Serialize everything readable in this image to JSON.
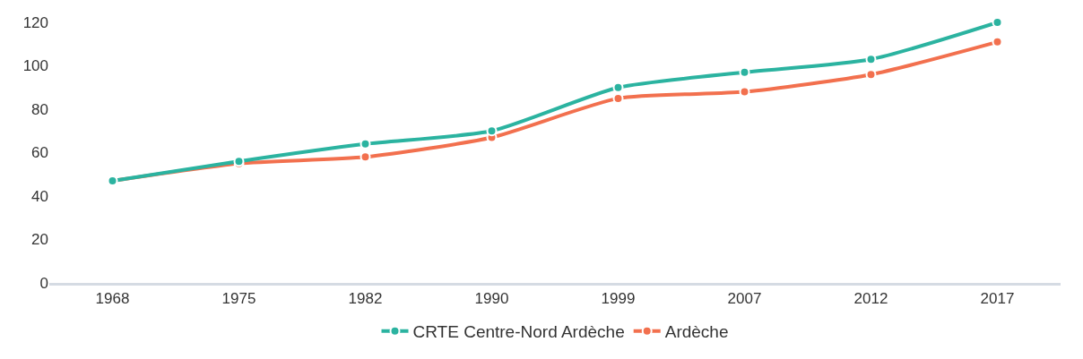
{
  "chart_data": {
    "type": "line",
    "categories": [
      "1968",
      "1975",
      "1982",
      "1990",
      "1999",
      "2007",
      "2012",
      "2017"
    ],
    "series": [
      {
        "name": "CRTE Centre-Nord Ardèche",
        "color": "#2bb3a0",
        "values": [
          47,
          56,
          64,
          70,
          90,
          97,
          103,
          120
        ]
      },
      {
        "name": "Ardèche",
        "color": "#f2704e",
        "values": [
          47,
          55,
          58,
          67,
          85,
          88,
          96,
          111
        ]
      }
    ],
    "ylim": [
      0,
      120
    ],
    "yticks": [
      0,
      20,
      40,
      60,
      80,
      100,
      120
    ],
    "legend": "bottom",
    "marker": "circle",
    "line_style": "solid"
  }
}
